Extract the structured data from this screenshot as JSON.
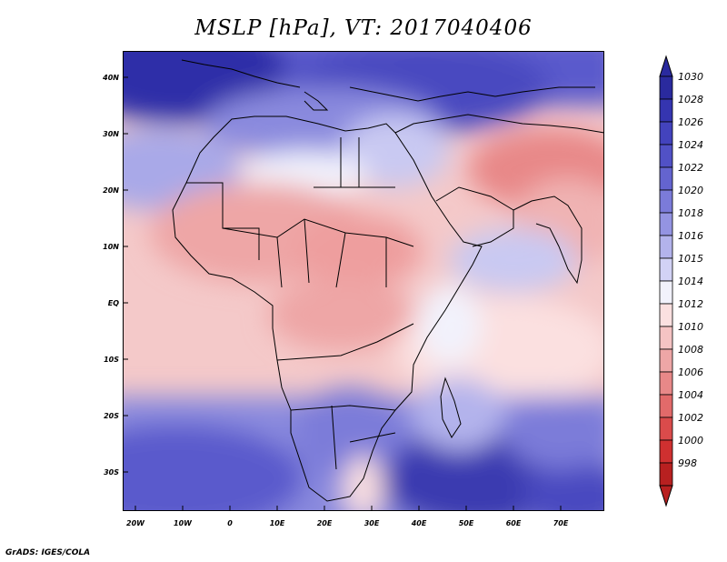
{
  "title": "MSLP [hPa], VT: 2017040406",
  "footer": "GrADS: IGES/COLA",
  "map": {
    "lon_labels": [
      "20W",
      "10W",
      "0",
      "10E",
      "20E",
      "30E",
      "40E",
      "50E",
      "60E",
      "70E"
    ],
    "lat_labels": [
      "40N",
      "30N",
      "20N",
      "10N",
      "EQ",
      "10S",
      "20S",
      "30S"
    ]
  },
  "colorbar": {
    "levels": [
      "1030",
      "1028",
      "1026",
      "1024",
      "1022",
      "1020",
      "1018",
      "1016",
      "1015",
      "1014",
      "1012",
      "1010",
      "1008",
      "1006",
      "1004",
      "1002",
      "1000",
      "998"
    ],
    "colors": [
      "#2a2a9e",
      "#3535b0",
      "#4343bd",
      "#5151c6",
      "#6464cf",
      "#7b7bd9",
      "#9494e2",
      "#b3b3ec",
      "#d2d2f5",
      "#f2f2fc",
      "#fbe0e0",
      "#f5c3c3",
      "#eea6a6",
      "#e88888",
      "#e26a6a",
      "#da4b4b",
      "#cf3030",
      "#b82020"
    ]
  }
}
